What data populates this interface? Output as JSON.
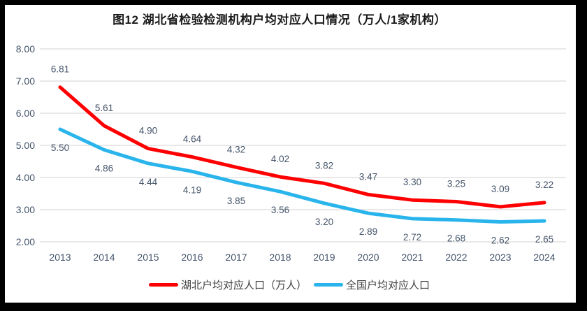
{
  "title": "图12 湖北省检验检测机构户均对应人口情况（万人/1家机构）",
  "chart_data": {
    "type": "line",
    "title": "图12 湖北省检验检测机构户均对应人口情况（万人/1家机构）",
    "categories": [
      "2013",
      "2014",
      "2015",
      "2016",
      "2017",
      "2018",
      "2019",
      "2020",
      "2021",
      "2022",
      "2023",
      "2024"
    ],
    "series": [
      {
        "name": "湖北户均对应人口（万人）",
        "color": "#fe0000",
        "values": [
          6.81,
          5.61,
          4.9,
          4.64,
          4.32,
          4.02,
          3.82,
          3.47,
          3.3,
          3.25,
          3.09,
          3.22
        ],
        "label_offset": -26
      },
      {
        "name": "全国户均对应人口",
        "color": "#29b4eb",
        "values": [
          5.5,
          4.86,
          4.44,
          4.19,
          3.85,
          3.56,
          3.2,
          2.89,
          2.72,
          2.68,
          2.62,
          2.65
        ],
        "label_offset": 26
      }
    ],
    "y_ticks": [
      "8.00",
      "7.00",
      "6.00",
      "5.00",
      "4.00",
      "3.00",
      "2.00"
    ],
    "ylim": [
      2.0,
      8.0
    ],
    "xlabel": "",
    "ylabel": "",
    "grid": true,
    "legend_position": "bottom",
    "colors": {
      "gridline": "#d9d9d9",
      "label_text": "#44546a",
      "axis_text": "#44546a",
      "frame_border": "#000000",
      "background": "#ffffff"
    }
  }
}
